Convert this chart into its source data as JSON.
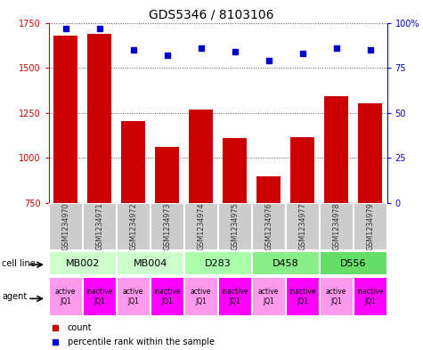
{
  "title": "GDS5346 / 8103106",
  "samples": [
    "GSM1234970",
    "GSM1234971",
    "GSM1234972",
    "GSM1234973",
    "GSM1234974",
    "GSM1234975",
    "GSM1234976",
    "GSM1234977",
    "GSM1234978",
    "GSM1234979"
  ],
  "counts": [
    1680,
    1690,
    1205,
    1060,
    1270,
    1110,
    900,
    1115,
    1345,
    1305
  ],
  "percentiles": [
    97,
    97,
    85,
    82,
    86,
    84,
    79,
    83,
    86,
    85
  ],
  "ylim_left": [
    750,
    1750
  ],
  "yticks_left": [
    750,
    1000,
    1250,
    1500,
    1750
  ],
  "ylim_right": [
    0,
    100
  ],
  "yticks_right": [
    0,
    25,
    50,
    75,
    100
  ],
  "bar_color": "#cc0000",
  "dot_color": "#0000cc",
  "cell_lines": [
    {
      "label": "MB002",
      "start": 0,
      "end": 2,
      "color": "#ccffcc"
    },
    {
      "label": "MB004",
      "start": 2,
      "end": 4,
      "color": "#ccffcc"
    },
    {
      "label": "D283",
      "start": 4,
      "end": 6,
      "color": "#aaffaa"
    },
    {
      "label": "D458",
      "start": 6,
      "end": 8,
      "color": "#88ee88"
    },
    {
      "label": "D556",
      "start": 8,
      "end": 10,
      "color": "#66dd66"
    }
  ],
  "agent_labels": [
    "active\nJQ1",
    "inactive\nJQ1",
    "active\nJQ1",
    "inactive\nJQ1",
    "active\nJQ1",
    "inactive\nJQ1",
    "active\nJQ1",
    "inactive\nJQ1",
    "active\nJQ1",
    "inactive\nJQ1"
  ],
  "agent_active_color": "#ff99ee",
  "agent_inactive_color": "#ff00ff",
  "sample_box_color": "#cccccc",
  "left_axis_color": "#cc0000",
  "right_axis_color": "#0000cc",
  "grid_color": "#555555",
  "bar_bottom": 750,
  "legend_count_color": "#cc0000",
  "legend_pct_color": "#0000cc"
}
